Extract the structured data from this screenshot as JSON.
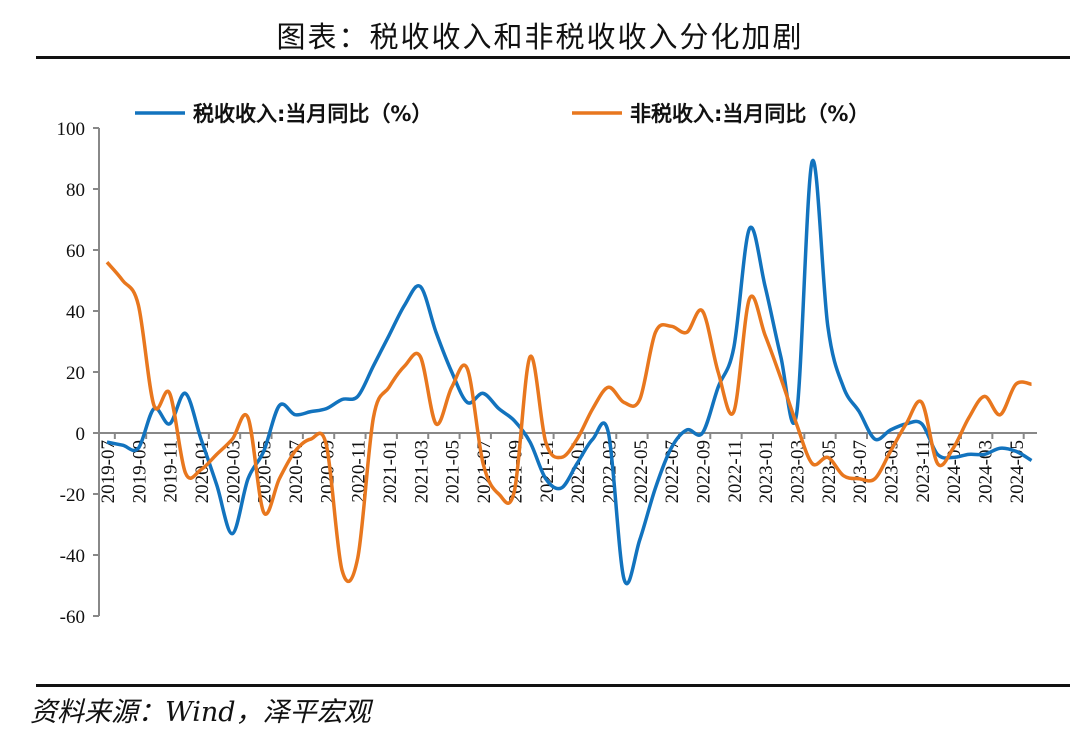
{
  "title": "图表：税收收入和非税收收入分化加剧",
  "source": "资料来源：Wind，泽平宏观",
  "chart_data": {
    "type": "line",
    "title": "",
    "xlabel": "",
    "ylabel": "",
    "ylim": [
      -60,
      100
    ],
    "yticks": [
      100,
      80,
      60,
      40,
      20,
      0,
      -20,
      -40,
      -60
    ],
    "legend_position": "top",
    "grid": false,
    "x": [
      "2019-07",
      "2019-08",
      "2019-09",
      "2019-10",
      "2019-11",
      "2019-12",
      "2020-01",
      "2020-02",
      "2020-03",
      "2020-04",
      "2020-05",
      "2020-06",
      "2020-07",
      "2020-08",
      "2020-09",
      "2020-10",
      "2020-11",
      "2020-12",
      "2021-01",
      "2021-02",
      "2021-03",
      "2021-04",
      "2021-05",
      "2021-06",
      "2021-07",
      "2021-08",
      "2021-09",
      "2021-10",
      "2021-11",
      "2021-12",
      "2022-01",
      "2022-02",
      "2022-03",
      "2022-04",
      "2022-05",
      "2022-06",
      "2022-07",
      "2022-08",
      "2022-09",
      "2022-10",
      "2022-11",
      "2022-12",
      "2023-01",
      "2023-02",
      "2023-03",
      "2023-04",
      "2023-05",
      "2023-06",
      "2023-07",
      "2023-08",
      "2023-09",
      "2023-10",
      "2023-11",
      "2023-12",
      "2024-01",
      "2024-02",
      "2024-03",
      "2024-04",
      "2024-05",
      "2024-06"
    ],
    "series": [
      {
        "name": "税收收入:当月同比（%）",
        "color": "#1273be",
        "values": [
          -3,
          -4,
          -5,
          8,
          3,
          13,
          -2,
          -17,
          -33,
          -15,
          -6,
          9,
          6,
          7,
          8,
          11,
          12,
          22,
          32,
          42,
          48,
          33,
          20,
          10,
          13,
          8,
          4,
          -3,
          -15,
          -18,
          -10,
          -2,
          0,
          -48,
          -35,
          -18,
          -5,
          1,
          0,
          15,
          28,
          67,
          48,
          25,
          6,
          89,
          35,
          15,
          7,
          -2,
          1,
          3,
          3,
          -7,
          -8,
          -7,
          -7,
          -5,
          -6,
          -9
        ]
      },
      {
        "name": "非税收入:当月同比（%）",
        "color": "#e8771e",
        "values": [
          56,
          50,
          42,
          9,
          13,
          -13,
          -12,
          -7,
          -2,
          5,
          -26,
          -15,
          -6,
          -2,
          -4,
          -45,
          -41,
          5,
          15,
          22,
          25,
          3,
          15,
          21,
          -10,
          -20,
          -19,
          25,
          -3,
          -8,
          -2,
          8,
          15,
          10,
          11,
          33,
          35,
          33,
          40,
          20,
          7,
          44,
          32,
          18,
          3,
          -10,
          -8,
          -14,
          -15,
          -15,
          -6,
          3,
          10,
          -10,
          -5,
          5,
          12,
          6,
          16,
          16
        ]
      }
    ]
  }
}
